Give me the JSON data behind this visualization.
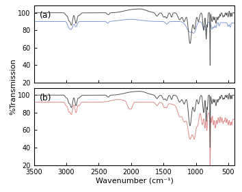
{
  "xlim": [
    3500,
    400
  ],
  "ylim_a": [
    20,
    108
  ],
  "ylim_b": [
    20,
    108
  ],
  "yticks": [
    20,
    40,
    60,
    80,
    100
  ],
  "xticks": [
    3500,
    3000,
    2500,
    2000,
    1500,
    1000,
    500
  ],
  "xlabel": "Wavenumber (cm⁻¹)",
  "ylabel": "%Transmission",
  "label_a": "(a)",
  "label_b": "(b)",
  "color_black": "#505050",
  "color_blue": "#8098d0",
  "color_red": "#e08888",
  "figsize": [
    3.54,
    2.81
  ],
  "dpi": 100
}
